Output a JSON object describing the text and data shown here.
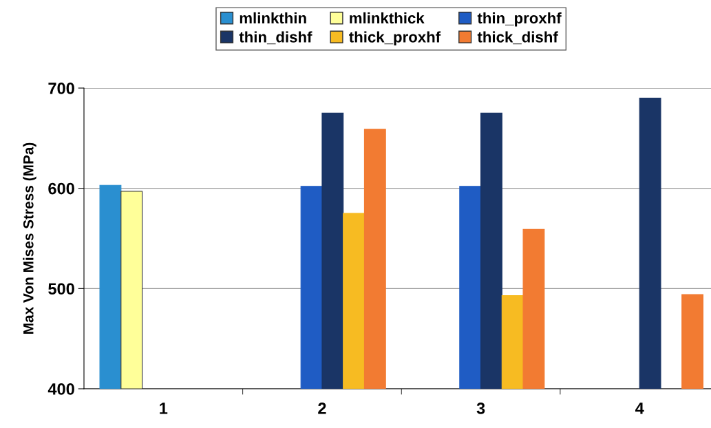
{
  "chart_data": {
    "type": "bar",
    "ylabel": "Max Von Mises Stress (MPa)",
    "categories": [
      "1",
      "2",
      "3",
      "4"
    ],
    "series": [
      {
        "name": "mlinkthin",
        "color": "#2a8fd0",
        "values": [
          603,
          null,
          null,
          null
        ]
      },
      {
        "name": "mlinkthick",
        "color": "#ffff99",
        "values": [
          597,
          null,
          null,
          null
        ]
      },
      {
        "name": "thin_proxhf",
        "color": "#1f5cc4",
        "values": [
          null,
          602,
          602,
          null
        ]
      },
      {
        "name": "thin_dishf",
        "color": "#1a3566",
        "values": [
          null,
          675,
          675,
          690
        ]
      },
      {
        "name": "thick_proxhf",
        "color": "#f7bb22",
        "values": [
          null,
          575,
          493,
          null
        ]
      },
      {
        "name": "thick_dishf",
        "color": "#f27b32",
        "values": [
          null,
          659,
          559,
          494
        ]
      }
    ],
    "ylim": [
      400,
      700
    ],
    "yticks": [
      400,
      500,
      600,
      700
    ],
    "grid": "y",
    "legend": "top"
  }
}
